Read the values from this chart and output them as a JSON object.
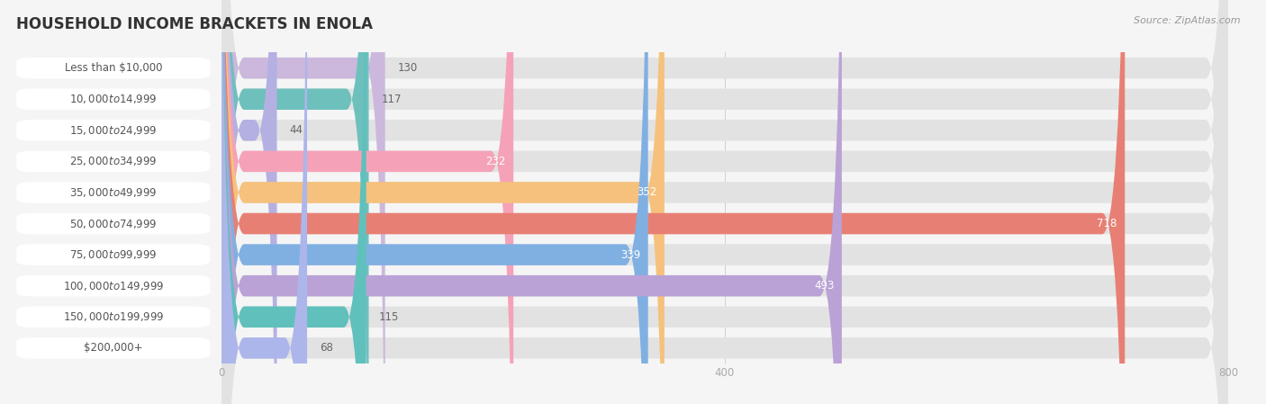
{
  "title": "HOUSEHOLD INCOME BRACKETS IN ENOLA",
  "source": "Source: ZipAtlas.com",
  "categories": [
    "Less than $10,000",
    "$10,000 to $14,999",
    "$15,000 to $24,999",
    "$25,000 to $34,999",
    "$35,000 to $49,999",
    "$50,000 to $74,999",
    "$75,000 to $99,999",
    "$100,000 to $149,999",
    "$150,000 to $199,999",
    "$200,000+"
  ],
  "values": [
    130,
    117,
    44,
    232,
    352,
    718,
    339,
    493,
    115,
    68
  ],
  "bar_colors": [
    "#cbb8dc",
    "#6ec0bd",
    "#b5b0e2",
    "#f5a2b8",
    "#f6c17c",
    "#e87f74",
    "#80b0e2",
    "#baa2d6",
    "#60c0bc",
    "#acb6ea"
  ],
  "bg_color": "#f5f5f5",
  "bar_bg_color": "#e2e2e2",
  "label_bg_color": "#ffffff",
  "data_max": 800,
  "xticks": [
    0,
    400,
    800
  ],
  "title_fontsize": 12,
  "label_fontsize": 8.5,
  "value_fontsize": 8.5,
  "bar_height": 0.68,
  "label_color": "#555555",
  "value_color_outside": "#666666",
  "value_color_inside": "#ffffff",
  "inside_threshold": 200
}
